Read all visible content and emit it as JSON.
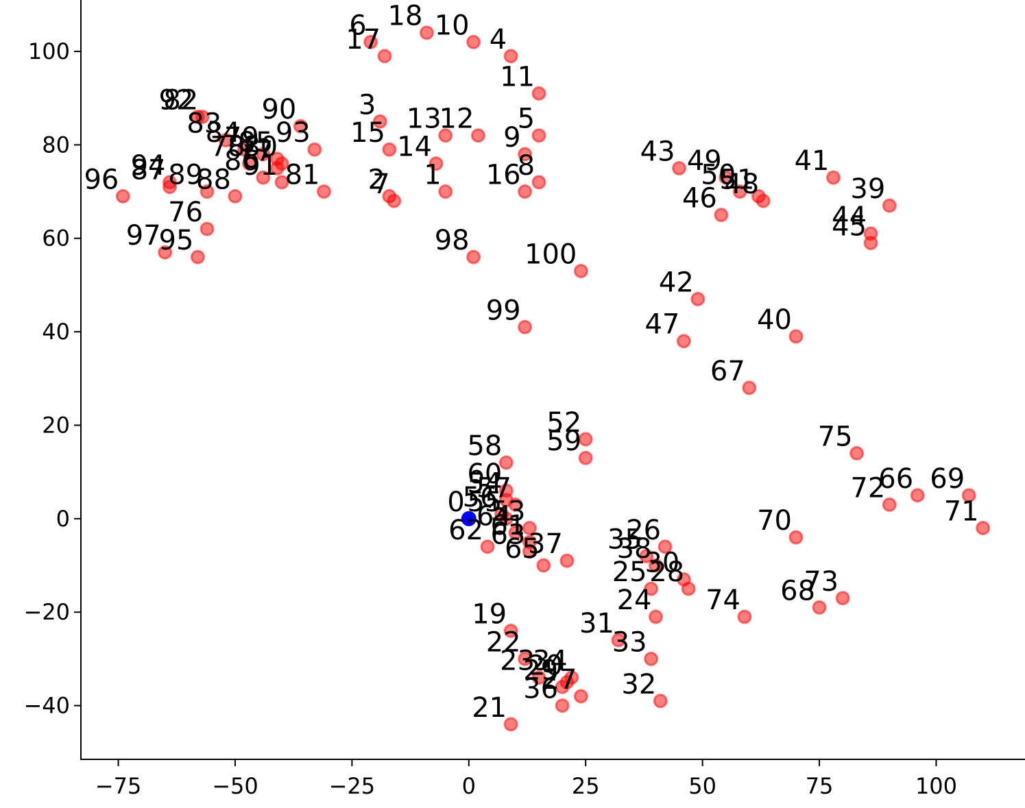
{
  "chart_data": {
    "type": "scatter",
    "title": "",
    "xlabel": "",
    "ylabel": "",
    "xlim": [
      -83,
      119
    ],
    "ylim": [
      -51.5,
      111
    ],
    "x_ticks": [
      -75,
      -50,
      -25,
      0,
      25,
      50,
      75,
      100
    ],
    "y_ticks": [
      -40,
      -20,
      0,
      20,
      40,
      60,
      80,
      100
    ],
    "x_tick_labels": [
      "−75",
      "−50",
      "−25",
      "0",
      "25",
      "50",
      "75",
      "100"
    ],
    "y_tick_labels": [
      "−40",
      "−20",
      "0",
      "20",
      "40",
      "60",
      "80",
      "100"
    ],
    "grid": false,
    "legend": "none",
    "colors": {
      "depot": "#0000ff",
      "customer": "#ff0000"
    },
    "depot": {
      "label": "0",
      "x": 0,
      "y": 0
    },
    "points": [
      {
        "label": "1",
        "x": -5,
        "y": 70
      },
      {
        "label": "2",
        "x": -17,
        "y": 69
      },
      {
        "label": "3",
        "x": -19,
        "y": 85
      },
      {
        "label": "4",
        "x": 9,
        "y": 99
      },
      {
        "label": "5",
        "x": 15,
        "y": 82
      },
      {
        "label": "6",
        "x": -21,
        "y": 102
      },
      {
        "label": "7",
        "x": -16,
        "y": 68
      },
      {
        "label": "8",
        "x": 15,
        "y": 72
      },
      {
        "label": "9",
        "x": 12,
        "y": 78
      },
      {
        "label": "10",
        "x": 1,
        "y": 102
      },
      {
        "label": "11",
        "x": 15,
        "y": 91
      },
      {
        "label": "12",
        "x": 2,
        "y": 82
      },
      {
        "label": "13",
        "x": -5,
        "y": 82
      },
      {
        "label": "14",
        "x": -7,
        "y": 76
      },
      {
        "label": "15",
        "x": -17,
        "y": 79
      },
      {
        "label": "16",
        "x": 12,
        "y": 70
      },
      {
        "label": "17",
        "x": -18,
        "y": 99
      },
      {
        "label": "18",
        "x": -9,
        "y": 104
      },
      {
        "label": "19",
        "x": 9,
        "y": -24
      },
      {
        "label": "20",
        "x": 21,
        "y": -35
      },
      {
        "label": "21",
        "x": 9,
        "y": -44
      },
      {
        "label": "22",
        "x": 12,
        "y": -30
      },
      {
        "label": "23",
        "x": 15,
        "y": -34
      },
      {
        "label": "24",
        "x": 40,
        "y": -21
      },
      {
        "label": "25",
        "x": 39,
        "y": -15
      },
      {
        "label": "26",
        "x": 42,
        "y": -6
      },
      {
        "label": "27",
        "x": 24,
        "y": -38
      },
      {
        "label": "28",
        "x": 47,
        "y": -15
      },
      {
        "label": "29",
        "x": 20,
        "y": -36
      },
      {
        "label": "30",
        "x": 46,
        "y": -13
      },
      {
        "label": "31",
        "x": 32,
        "y": -26
      },
      {
        "label": "32",
        "x": 41,
        "y": -39
      },
      {
        "label": "33",
        "x": 39,
        "y": -30
      },
      {
        "label": "34",
        "x": 22,
        "y": -34
      },
      {
        "label": "35",
        "x": 38,
        "y": -8
      },
      {
        "label": "36",
        "x": 20,
        "y": -40
      },
      {
        "label": "37",
        "x": 21,
        "y": -9
      },
      {
        "label": "38",
        "x": 40,
        "y": -10
      },
      {
        "label": "39",
        "x": 90,
        "y": 67
      },
      {
        "label": "40",
        "x": 70,
        "y": 39
      },
      {
        "label": "41",
        "x": 78,
        "y": 73
      },
      {
        "label": "42",
        "x": 49,
        "y": 47
      },
      {
        "label": "43",
        "x": 45,
        "y": 75
      },
      {
        "label": "44",
        "x": 86,
        "y": 61
      },
      {
        "label": "45",
        "x": 86,
        "y": 59
      },
      {
        "label": "46",
        "x": 54,
        "y": 65
      },
      {
        "label": "47",
        "x": 46,
        "y": 38
      },
      {
        "label": "48",
        "x": 63,
        "y": 68
      },
      {
        "label": "49",
        "x": 55,
        "y": 73
      },
      {
        "label": "50",
        "x": 58,
        "y": 70
      },
      {
        "label": "51",
        "x": 62,
        "y": 69
      },
      {
        "label": "52",
        "x": 25,
        "y": 17
      },
      {
        "label": "53",
        "x": 13,
        "y": -2
      },
      {
        "label": "54",
        "x": 8,
        "y": 4
      },
      {
        "label": "55",
        "x": 8,
        "y": 0
      },
      {
        "label": "56",
        "x": 7,
        "y": 1
      },
      {
        "label": "57",
        "x": 10,
        "y": 3
      },
      {
        "label": "58",
        "x": 8,
        "y": 12
      },
      {
        "label": "59",
        "x": 25,
        "y": 13
      },
      {
        "label": "60",
        "x": 8,
        "y": 6
      },
      {
        "label": "61",
        "x": 13,
        "y": -5
      },
      {
        "label": "62",
        "x": 4,
        "y": -6
      },
      {
        "label": "63",
        "x": 13,
        "y": -7
      },
      {
        "label": "64",
        "x": 10,
        "y": -3
      },
      {
        "label": "65",
        "x": 16,
        "y": -10
      },
      {
        "label": "66",
        "x": 96,
        "y": 5
      },
      {
        "label": "67",
        "x": 60,
        "y": 28
      },
      {
        "label": "68",
        "x": 75,
        "y": -19
      },
      {
        "label": "69",
        "x": 107,
        "y": 5
      },
      {
        "label": "70",
        "x": 70,
        "y": -4
      },
      {
        "label": "71",
        "x": 110,
        "y": -2
      },
      {
        "label": "72",
        "x": 90,
        "y": 3
      },
      {
        "label": "73",
        "x": 80,
        "y": -17
      },
      {
        "label": "74",
        "x": 59,
        "y": -21
      },
      {
        "label": "75",
        "x": 83,
        "y": 14
      },
      {
        "label": "76",
        "x": -56,
        "y": 62
      },
      {
        "label": "77",
        "x": -41,
        "y": 75
      },
      {
        "label": "78",
        "x": -47,
        "y": 76
      },
      {
        "label": "79",
        "x": -44,
        "y": 78
      },
      {
        "label": "80",
        "x": -40,
        "y": 76
      },
      {
        "label": "81",
        "x": -31,
        "y": 70
      },
      {
        "label": "82",
        "x": -57,
        "y": 86
      },
      {
        "label": "83",
        "x": -52,
        "y": 81
      },
      {
        "label": "84",
        "x": -48,
        "y": 79
      },
      {
        "label": "85",
        "x": -41,
        "y": 77
      },
      {
        "label": "86",
        "x": -44,
        "y": 73
      },
      {
        "label": "87",
        "x": -64,
        "y": 71
      },
      {
        "label": "88",
        "x": -50,
        "y": 69
      },
      {
        "label": "89",
        "x": -56,
        "y": 70
      },
      {
        "label": "90",
        "x": -36,
        "y": 84
      },
      {
        "label": "91",
        "x": -40,
        "y": 72
      },
      {
        "label": "92",
        "x": -58,
        "y": 86
      },
      {
        "label": "93",
        "x": -33,
        "y": 79
      },
      {
        "label": "94",
        "x": -64,
        "y": 72
      },
      {
        "label": "95",
        "x": -58,
        "y": 56
      },
      {
        "label": "96",
        "x": -74,
        "y": 69
      },
      {
        "label": "97",
        "x": -65,
        "y": 57
      },
      {
        "label": "98",
        "x": 1,
        "y": 56
      },
      {
        "label": "99",
        "x": 12,
        "y": 41
      },
      {
        "label": "100",
        "x": 24,
        "y": 53
      }
    ]
  }
}
